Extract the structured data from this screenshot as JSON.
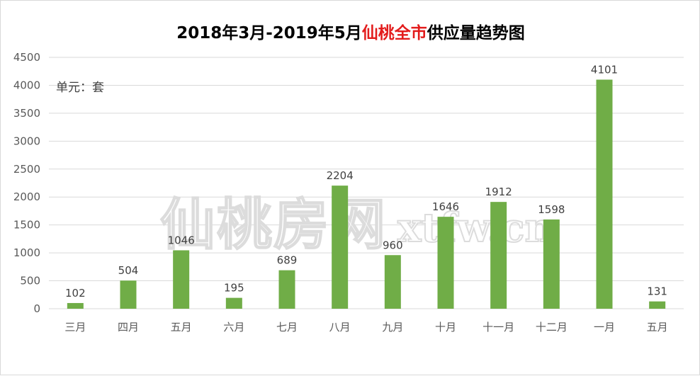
{
  "chart_data": {
    "type": "bar",
    "title_part1": "2018年3月-2019年5月",
    "title_highlight": "仙桃全市",
    "title_part2": "供应量趋势图",
    "unit_label": "单元：套",
    "categories": [
      "三月",
      "四月",
      "五月",
      "六月",
      "七月",
      "八月",
      "九月",
      "十月",
      "十一月",
      "十二月",
      "一月",
      "五月"
    ],
    "values": [
      102,
      504,
      1046,
      195,
      689,
      2204,
      960,
      1646,
      1912,
      1598,
      4101,
      131
    ],
    "ylim": [
      0,
      4500
    ],
    "yticks": [
      0,
      500,
      1000,
      1500,
      2000,
      2500,
      3000,
      3500,
      4000,
      4500
    ],
    "grid": true,
    "legend": "none",
    "bar_color": "#70ad47",
    "gridline_color": "#d9d9d9",
    "title_highlight_color": "#e31c1c"
  },
  "watermark": {
    "text": "仙桃房网",
    "url": "xtfw.cn"
  }
}
